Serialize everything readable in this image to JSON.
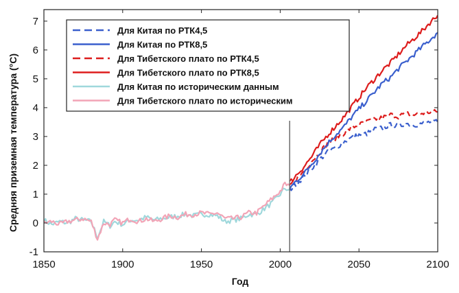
{
  "chart_data": {
    "type": "line",
    "title": "",
    "xlabel": "Год",
    "ylabel": "Средняя приземная температура (°C)",
    "xlim": [
      1850,
      2100
    ],
    "ylim": [
      -1,
      7.4
    ],
    "xticks": [
      1850,
      1900,
      1950,
      2000,
      2050,
      2100
    ],
    "xtick_labels": [
      "1850",
      "1900",
      "1950",
      "2000",
      "2050",
      "2100"
    ],
    "yticks": [
      -1,
      0,
      1,
      2,
      3,
      4,
      5,
      6,
      7
    ],
    "ytick_labels": [
      "-1",
      "0",
      "1",
      "2",
      "3",
      "4",
      "5",
      "6",
      "7"
    ],
    "grid": false,
    "legend_position": "top-left",
    "annotations": [
      {
        "type": "vertical-line",
        "x": 2006,
        "color": "#555555"
      }
    ],
    "series": [
      {
        "name": "Для Китая по РТК4,5",
        "color": "#3a5fcd",
        "style": "dashed",
        "points": [
          [
            2006,
            1.15
          ],
          [
            2010,
            1.35
          ],
          [
            2015,
            1.6
          ],
          [
            2020,
            1.9
          ],
          [
            2025,
            2.2
          ],
          [
            2030,
            2.45
          ],
          [
            2035,
            2.6
          ],
          [
            2040,
            2.8
          ],
          [
            2045,
            2.95
          ],
          [
            2050,
            3.05
          ],
          [
            2055,
            3.1
          ],
          [
            2060,
            3.25
          ],
          [
            2065,
            3.3
          ],
          [
            2070,
            3.4
          ],
          [
            2075,
            3.35
          ],
          [
            2080,
            3.45
          ],
          [
            2085,
            3.4
          ],
          [
            2090,
            3.45
          ],
          [
            2095,
            3.5
          ],
          [
            2100,
            3.5
          ]
        ]
      },
      {
        "name": "Для Китая по РТК8,5",
        "color": "#3a5fcd",
        "style": "solid",
        "points": [
          [
            2006,
            1.2
          ],
          [
            2010,
            1.45
          ],
          [
            2015,
            1.7
          ],
          [
            2020,
            2.05
          ],
          [
            2025,
            2.4
          ],
          [
            2030,
            2.75
          ],
          [
            2035,
            3.05
          ],
          [
            2040,
            3.3
          ],
          [
            2045,
            3.65
          ],
          [
            2050,
            3.95
          ],
          [
            2055,
            4.25
          ],
          [
            2060,
            4.55
          ],
          [
            2065,
            4.85
          ],
          [
            2070,
            5.05
          ],
          [
            2075,
            5.35
          ],
          [
            2080,
            5.6
          ],
          [
            2085,
            5.85
          ],
          [
            2090,
            6.1
          ],
          [
            2095,
            6.35
          ],
          [
            2100,
            6.6
          ]
        ]
      },
      {
        "name": "Для Тибетского плато по РТК4,5",
        "color": "#dd1c1c",
        "style": "dashed",
        "points": [
          [
            2006,
            1.3
          ],
          [
            2010,
            1.5
          ],
          [
            2015,
            1.8
          ],
          [
            2020,
            2.15
          ],
          [
            2025,
            2.45
          ],
          [
            2030,
            2.75
          ],
          [
            2035,
            2.95
          ],
          [
            2040,
            3.1
          ],
          [
            2045,
            3.3
          ],
          [
            2050,
            3.4
          ],
          [
            2055,
            3.5
          ],
          [
            2060,
            3.6
          ],
          [
            2065,
            3.65
          ],
          [
            2070,
            3.75
          ],
          [
            2075,
            3.7
          ],
          [
            2080,
            3.8
          ],
          [
            2085,
            3.75
          ],
          [
            2090,
            3.8
          ],
          [
            2095,
            3.85
          ],
          [
            2100,
            3.85
          ]
        ]
      },
      {
        "name": "Для Тибетского плато по РТК8,5",
        "color": "#dd1c1c",
        "style": "solid",
        "points": [
          [
            2006,
            1.4
          ],
          [
            2010,
            1.65
          ],
          [
            2015,
            1.95
          ],
          [
            2020,
            2.3
          ],
          [
            2025,
            2.7
          ],
          [
            2030,
            3.05
          ],
          [
            2035,
            3.35
          ],
          [
            2040,
            3.65
          ],
          [
            2045,
            4.0
          ],
          [
            2050,
            4.35
          ],
          [
            2055,
            4.7
          ],
          [
            2060,
            5.0
          ],
          [
            2065,
            5.3
          ],
          [
            2070,
            5.55
          ],
          [
            2075,
            5.85
          ],
          [
            2080,
            6.15
          ],
          [
            2085,
            6.4
          ],
          [
            2090,
            6.65
          ],
          [
            2095,
            6.95
          ],
          [
            2100,
            7.2
          ]
        ]
      },
      {
        "name": "Для Китая по историческим данным",
        "color": "#9fd8dc",
        "style": "solid",
        "points": [
          [
            1850,
            0.1
          ],
          [
            1855,
            -0.05
          ],
          [
            1860,
            0.05
          ],
          [
            1865,
            0.0
          ],
          [
            1870,
            0.15
          ],
          [
            1875,
            0.1
          ],
          [
            1880,
            0.05
          ],
          [
            1884,
            -0.5
          ],
          [
            1888,
            0.05
          ],
          [
            1892,
            -0.1
          ],
          [
            1895,
            0.05
          ],
          [
            1900,
            -0.05
          ],
          [
            1905,
            0.1
          ],
          [
            1910,
            0.1
          ],
          [
            1915,
            0.2
          ],
          [
            1920,
            0.1
          ],
          [
            1925,
            0.15
          ],
          [
            1930,
            0.2
          ],
          [
            1935,
            0.25
          ],
          [
            1940,
            0.3
          ],
          [
            1945,
            0.25
          ],
          [
            1950,
            0.3
          ],
          [
            1955,
            0.3
          ],
          [
            1960,
            0.25
          ],
          [
            1965,
            0.05
          ],
          [
            1970,
            0.1
          ],
          [
            1975,
            0.15
          ],
          [
            1980,
            0.3
          ],
          [
            1985,
            0.3
          ],
          [
            1990,
            0.5
          ],
          [
            1995,
            0.7
          ],
          [
            2000,
            1.0
          ],
          [
            2003,
            1.2
          ],
          [
            2006,
            1.15
          ]
        ]
      },
      {
        "name": "Для Тибетского плато по историческим",
        "color": "#f2a4b6",
        "style": "solid",
        "points": [
          [
            1850,
            0.0
          ],
          [
            1855,
            0.05
          ],
          [
            1860,
            -0.05
          ],
          [
            1865,
            0.05
          ],
          [
            1870,
            0.1
          ],
          [
            1875,
            0.15
          ],
          [
            1880,
            0.05
          ],
          [
            1884,
            -0.55
          ],
          [
            1888,
            0.0
          ],
          [
            1892,
            -0.05
          ],
          [
            1895,
            0.1
          ],
          [
            1900,
            0.0
          ],
          [
            1905,
            0.15
          ],
          [
            1910,
            0.05
          ],
          [
            1915,
            0.15
          ],
          [
            1920,
            0.05
          ],
          [
            1925,
            0.15
          ],
          [
            1930,
            0.25
          ],
          [
            1935,
            0.2
          ],
          [
            1940,
            0.3
          ],
          [
            1945,
            0.3
          ],
          [
            1950,
            0.35
          ],
          [
            1955,
            0.3
          ],
          [
            1960,
            0.35
          ],
          [
            1965,
            0.15
          ],
          [
            1970,
            0.15
          ],
          [
            1975,
            0.2
          ],
          [
            1980,
            0.35
          ],
          [
            1985,
            0.35
          ],
          [
            1990,
            0.6
          ],
          [
            1995,
            0.85
          ],
          [
            2000,
            1.1
          ],
          [
            2003,
            1.35
          ],
          [
            2006,
            1.3
          ]
        ]
      }
    ]
  }
}
